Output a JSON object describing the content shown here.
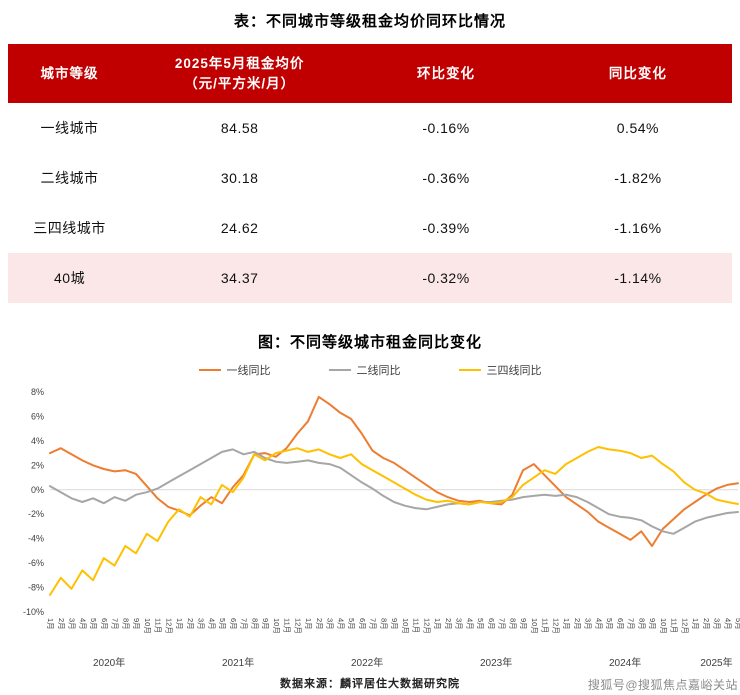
{
  "table_section": {
    "title": "表：不同城市等级租金均价同环比情况",
    "header_bg": "#c00000",
    "highlight_bg": "#fbe7e7",
    "headers": [
      {
        "lines": [
          "城市等级"
        ]
      },
      {
        "lines": [
          "2025年5月租金均价",
          "（元/平方米/月）"
        ]
      },
      {
        "lines": [
          "环比变化"
        ]
      },
      {
        "lines": [
          "同比变化"
        ]
      }
    ],
    "rows": [
      {
        "tier": "一线城市",
        "price": "84.58",
        "mom": "-0.16%",
        "yoy": "0.54%",
        "highlight": false
      },
      {
        "tier": "二线城市",
        "price": "30.18",
        "mom": "-0.36%",
        "yoy": "-1.82%",
        "highlight": false
      },
      {
        "tier": "三四线城市",
        "price": "24.62",
        "mom": "-0.39%",
        "yoy": "-1.16%",
        "highlight": false
      },
      {
        "tier": "40城",
        "price": "34.37",
        "mom": "-0.32%",
        "yoy": "-1.14%",
        "highlight": true
      }
    ]
  },
  "chart": {
    "title": "图：不同等级城市租金同比变化",
    "chart_data": {
      "type": "line",
      "ylim": [
        -10,
        8
      ],
      "yticks": [
        8,
        6,
        4,
        2,
        0,
        -2,
        -4,
        -6,
        -8,
        -10
      ],
      "ytick_suffix": "%",
      "grid": "zero-line-only",
      "legend_position": "top-center",
      "x": [
        "1月",
        "2月",
        "3月",
        "4月",
        "5月",
        "6月",
        "7月",
        "8月",
        "9月",
        "10月",
        "11月",
        "12月",
        "1月",
        "2月",
        "3月",
        "4月",
        "5月",
        "6月",
        "7月",
        "8月",
        "9月",
        "10月",
        "11月",
        "12月",
        "1月",
        "2月",
        "3月",
        "4月",
        "5月",
        "6月",
        "7月",
        "8月",
        "9月",
        "10月",
        "11月",
        "12月",
        "1月",
        "2月",
        "3月",
        "4月",
        "5月",
        "6月",
        "7月",
        "8月",
        "9月",
        "10月",
        "11月",
        "12月",
        "1月",
        "2月",
        "3月",
        "4月",
        "5月",
        "6月",
        "7月",
        "8月",
        "9月",
        "10月",
        "11月",
        "12月",
        "1月",
        "2月",
        "3月",
        "4月",
        "5月"
      ],
      "year_groups": [
        {
          "label": "2020年",
          "from": 0,
          "to": 11
        },
        {
          "label": "2021年",
          "from": 12,
          "to": 23
        },
        {
          "label": "2022年",
          "from": 24,
          "to": 35
        },
        {
          "label": "2023年",
          "from": 36,
          "to": 47
        },
        {
          "label": "2024年",
          "from": 48,
          "to": 59
        },
        {
          "label": "2025年",
          "from": 60,
          "to": 64
        }
      ],
      "series": [
        {
          "name": "一线同比",
          "color": "#ed7d31",
          "values": [
            3.0,
            3.4,
            2.9,
            2.4,
            2.0,
            1.7,
            1.5,
            1.6,
            1.3,
            0.3,
            -0.7,
            -1.4,
            -1.7,
            -2.1,
            -1.3,
            -0.6,
            -1.1,
            0.2,
            1.2,
            2.9,
            3.0,
            2.7,
            3.4,
            4.6,
            5.6,
            7.6,
            7.0,
            6.3,
            5.8,
            4.6,
            3.2,
            2.6,
            2.2,
            1.6,
            1.0,
            0.4,
            -0.2,
            -0.6,
            -0.9,
            -1.0,
            -0.9,
            -1.1,
            -1.2,
            -0.4,
            1.6,
            2.1,
            1.2,
            0.3,
            -0.6,
            -1.2,
            -1.8,
            -2.6,
            -3.1,
            -3.6,
            -4.1,
            -3.4,
            -4.6,
            -3.2,
            -2.4,
            -1.6,
            -1.0,
            -0.4,
            0.1,
            0.4,
            0.54
          ]
        },
        {
          "name": "二线同比",
          "color": "#a6a6a6",
          "values": [
            0.3,
            -0.2,
            -0.7,
            -1.0,
            -0.7,
            -1.1,
            -0.6,
            -0.9,
            -0.4,
            -0.2,
            0.1,
            0.6,
            1.1,
            1.6,
            2.1,
            2.6,
            3.1,
            3.3,
            2.9,
            3.1,
            2.6,
            2.3,
            2.2,
            2.3,
            2.4,
            2.2,
            2.1,
            1.8,
            1.2,
            0.6,
            0.1,
            -0.5,
            -1.0,
            -1.3,
            -1.5,
            -1.6,
            -1.4,
            -1.2,
            -1.1,
            -1.2,
            -1.0,
            -1.0,
            -0.9,
            -0.8,
            -0.6,
            -0.5,
            -0.4,
            -0.5,
            -0.4,
            -0.6,
            -1.0,
            -1.5,
            -2.0,
            -2.2,
            -2.3,
            -2.5,
            -3.0,
            -3.4,
            -3.6,
            -3.1,
            -2.6,
            -2.3,
            -2.1,
            -1.9,
            -1.82
          ]
        },
        {
          "name": "三四线同比",
          "color": "#ffc000",
          "values": [
            -8.6,
            -7.2,
            -8.1,
            -6.6,
            -7.4,
            -5.6,
            -6.2,
            -4.6,
            -5.2,
            -3.6,
            -4.2,
            -2.6,
            -1.6,
            -2.2,
            -0.6,
            -1.2,
            0.4,
            -0.2,
            1.0,
            2.9,
            2.4,
            3.0,
            3.2,
            3.4,
            3.1,
            3.3,
            2.9,
            2.6,
            2.9,
            2.1,
            1.6,
            1.1,
            0.6,
            0.1,
            -0.4,
            -0.8,
            -1.0,
            -0.9,
            -1.1,
            -1.2,
            -1.0,
            -1.1,
            -1.0,
            -0.6,
            0.4,
            1.0,
            1.6,
            1.3,
            2.1,
            2.6,
            3.1,
            3.5,
            3.3,
            3.2,
            3.0,
            2.6,
            2.8,
            2.1,
            1.5,
            0.6,
            0.0,
            -0.3,
            -0.8,
            -1.0,
            -1.16
          ]
        }
      ]
    }
  },
  "footer": {
    "source": "数据来源：麟评居住大数据研究院",
    "watermark": "搜狐号@搜狐焦点嘉峪关站"
  }
}
